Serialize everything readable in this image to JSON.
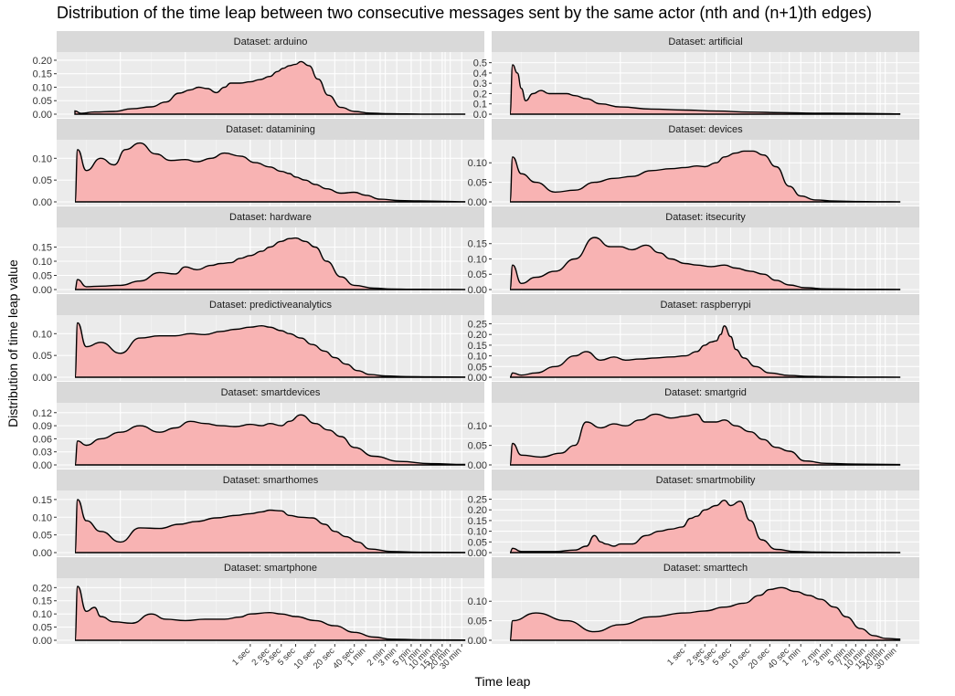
{
  "chart_data": {
    "type": "area",
    "title": "Distribution of the time leap between two consecutive messages sent by the same actor (nth and (n+1)th edges)",
    "xlabel": "Time leap",
    "ylabel": "Distribution of time leap value",
    "x_tick_labels": [
      "1 sec",
      "2 sec",
      "3 sec",
      "5 sec",
      "10 sec",
      "20 sec",
      "40 sec",
      "1 min",
      "2 min",
      "3 min",
      "5 min",
      "7 min",
      "10 min",
      "15 min",
      "20 min",
      "30 min"
    ],
    "x_ticks_sec": [
      1,
      2,
      3,
      5,
      10,
      20,
      40,
      60,
      120,
      180,
      300,
      420,
      600,
      900,
      1200,
      1800
    ],
    "x_scale": "log",
    "xlim_sec": [
      0.002,
      2100
    ],
    "fill_color": "#F8B3B3",
    "line_color": "#000000",
    "panel_background": "#EBEBEB",
    "strip_background": "#D9D9D9",
    "grid": true,
    "facets": [
      {
        "name": "Dataset: arduino",
        "ylim": [
          0,
          0.21
        ],
        "yticks": [
          "0.00",
          "0.05",
          "0.10",
          "0.15",
          "0.20"
        ],
        "x": [
          0.002,
          0.0025,
          0.004,
          0.008,
          0.015,
          0.03,
          0.05,
          0.08,
          0.12,
          0.16,
          0.22,
          0.3,
          0.4,
          0.5,
          0.7,
          1,
          1.4,
          2,
          2.6,
          3.2,
          4,
          5,
          6,
          8,
          11,
          16,
          25,
          40,
          70,
          120,
          250,
          500,
          1000,
          2000
        ],
        "y": [
          0.012,
          0.003,
          0.008,
          0.01,
          0.02,
          0.027,
          0.045,
          0.078,
          0.09,
          0.1,
          0.095,
          0.08,
          0.1,
          0.115,
          0.115,
          0.12,
          0.128,
          0.14,
          0.158,
          0.17,
          0.18,
          0.185,
          0.195,
          0.18,
          0.13,
          0.07,
          0.025,
          0.01,
          0.004,
          0.002,
          0.001,
          0.0005,
          0.0003,
          0.0002
        ]
      },
      {
        "name": "Dataset: artificial",
        "ylim": [
          0,
          0.55
        ],
        "yticks": [
          "0.0",
          "0.1",
          "0.2",
          "0.3",
          "0.4",
          "0.5"
        ],
        "x": [
          0.002,
          0.0022,
          0.0026,
          0.003,
          0.0035,
          0.0045,
          0.006,
          0.008,
          0.011,
          0.015,
          0.02,
          0.03,
          0.05,
          0.1,
          0.3,
          1,
          3,
          10,
          30,
          100,
          300,
          1000,
          2000
        ],
        "y": [
          0.0,
          0.48,
          0.4,
          0.25,
          0.13,
          0.2,
          0.23,
          0.2,
          0.2,
          0.2,
          0.18,
          0.15,
          0.1,
          0.07,
          0.05,
          0.04,
          0.03,
          0.02,
          0.015,
          0.01,
          0.008,
          0.005,
          0.003
        ]
      },
      {
        "name": "Dataset: datamining",
        "ylim": [
          0,
          0.13
        ],
        "yticks": [
          "0.00",
          "0.05",
          "0.10"
        ],
        "x": [
          0.002,
          0.0022,
          0.003,
          0.005,
          0.008,
          0.012,
          0.02,
          0.035,
          0.06,
          0.1,
          0.15,
          0.25,
          0.4,
          0.7,
          1.2,
          2,
          3,
          4,
          5,
          7,
          10,
          15,
          25,
          40,
          60,
          100,
          200,
          400,
          1000,
          2000
        ],
        "y": [
          0.0,
          0.12,
          0.072,
          0.1,
          0.085,
          0.12,
          0.135,
          0.11,
          0.095,
          0.097,
          0.092,
          0.1,
          0.112,
          0.105,
          0.09,
          0.08,
          0.07,
          0.065,
          0.057,
          0.05,
          0.04,
          0.03,
          0.02,
          0.022,
          0.015,
          0.006,
          0.003,
          0.002,
          0.001,
          0.0005
        ]
      },
      {
        "name": "Dataset: devices",
        "ylim": [
          0,
          0.145
        ],
        "yticks": [
          "0.00",
          "0.05",
          "0.10"
        ],
        "x": [
          0.002,
          0.0022,
          0.003,
          0.005,
          0.01,
          0.02,
          0.04,
          0.08,
          0.15,
          0.3,
          0.6,
          1,
          1.5,
          2,
          3,
          4,
          6,
          8,
          11,
          16,
          25,
          40,
          60,
          100,
          200,
          400,
          1000,
          2000
        ],
        "y": [
          0.0,
          0.115,
          0.072,
          0.05,
          0.025,
          0.03,
          0.05,
          0.06,
          0.065,
          0.08,
          0.085,
          0.088,
          0.092,
          0.09,
          0.1,
          0.115,
          0.125,
          0.13,
          0.13,
          0.12,
          0.09,
          0.04,
          0.015,
          0.005,
          0.002,
          0.001,
          0.0005,
          0.0003
        ]
      },
      {
        "name": "Dataset: hardware",
        "ylim": [
          0,
          0.2
        ],
        "yticks": [
          "0.00",
          "0.05",
          "0.10",
          "0.15"
        ],
        "x": [
          0.002,
          0.0022,
          0.003,
          0.005,
          0.01,
          0.02,
          0.04,
          0.07,
          0.1,
          0.15,
          0.25,
          0.35,
          0.5,
          0.7,
          1,
          1.5,
          2,
          3,
          4,
          5,
          7,
          10,
          15,
          25,
          40,
          80,
          150,
          300,
          700,
          2000
        ],
        "y": [
          0.0,
          0.035,
          0.01,
          0.012,
          0.015,
          0.03,
          0.06,
          0.055,
          0.08,
          0.07,
          0.085,
          0.092,
          0.095,
          0.11,
          0.12,
          0.135,
          0.15,
          0.17,
          0.18,
          0.182,
          0.17,
          0.15,
          0.1,
          0.045,
          0.015,
          0.005,
          0.002,
          0.001,
          0.0005,
          0.0003
        ]
      },
      {
        "name": "Dataset: itsecurity",
        "ylim": [
          0,
          0.185
        ],
        "yticks": [
          "0.00",
          "0.05",
          "0.10",
          "0.15"
        ],
        "x": [
          0.002,
          0.0022,
          0.003,
          0.005,
          0.01,
          0.02,
          0.04,
          0.07,
          0.1,
          0.15,
          0.25,
          0.4,
          0.6,
          1,
          1.5,
          2.5,
          4,
          6,
          10,
          16,
          25,
          40,
          70,
          150,
          400,
          2000
        ],
        "y": [
          0.0,
          0.08,
          0.02,
          0.04,
          0.06,
          0.1,
          0.17,
          0.14,
          0.14,
          0.13,
          0.145,
          0.12,
          0.1,
          0.085,
          0.08,
          0.075,
          0.08,
          0.07,
          0.06,
          0.05,
          0.03,
          0.015,
          0.006,
          0.002,
          0.001,
          0.0005
        ]
      },
      {
        "name": "Dataset: predictiveanalytics",
        "ylim": [
          0,
          0.13
        ],
        "yticks": [
          "0.00",
          "0.05",
          "0.10"
        ],
        "x": [
          0.002,
          0.0022,
          0.003,
          0.005,
          0.01,
          0.02,
          0.04,
          0.07,
          0.12,
          0.2,
          0.35,
          0.6,
          1,
          1.5,
          2,
          3,
          4,
          6,
          9,
          14,
          20,
          30,
          45,
          70,
          120,
          250,
          600,
          2000
        ],
        "y": [
          0.0,
          0.125,
          0.07,
          0.08,
          0.055,
          0.09,
          0.095,
          0.095,
          0.1,
          0.098,
          0.105,
          0.11,
          0.115,
          0.118,
          0.115,
          0.107,
          0.1,
          0.09,
          0.075,
          0.06,
          0.045,
          0.03,
          0.015,
          0.006,
          0.003,
          0.0015,
          0.0008,
          0.0005
        ]
      },
      {
        "name": "Dataset: raspberrypi",
        "ylim": [
          0,
          0.265
        ],
        "yticks": [
          "0.00",
          "0.05",
          "0.10",
          "0.15",
          "0.20",
          "0.25"
        ],
        "x": [
          0.002,
          0.0022,
          0.003,
          0.005,
          0.01,
          0.02,
          0.03,
          0.05,
          0.08,
          0.12,
          0.2,
          0.35,
          0.6,
          1,
          1.5,
          2,
          2.5,
          3,
          3.5,
          4,
          5,
          6,
          8,
          12,
          20,
          40,
          80,
          200,
          600,
          2000
        ],
        "y": [
          0.0,
          0.02,
          0.01,
          0.02,
          0.05,
          0.1,
          0.12,
          0.08,
          0.095,
          0.08,
          0.085,
          0.09,
          0.095,
          0.1,
          0.12,
          0.15,
          0.165,
          0.17,
          0.2,
          0.24,
          0.19,
          0.13,
          0.09,
          0.05,
          0.02,
          0.008,
          0.004,
          0.002,
          0.001,
          0.0005
        ]
      },
      {
        "name": "Dataset: smartdevices",
        "ylim": [
          0,
          0.13
        ],
        "yticks": [
          "0.00",
          "0.03",
          "0.06",
          "0.09",
          "0.12"
        ],
        "x": [
          0.002,
          0.0022,
          0.003,
          0.005,
          0.01,
          0.02,
          0.04,
          0.07,
          0.12,
          0.2,
          0.35,
          0.6,
          1,
          1.5,
          2,
          3,
          4,
          6,
          10,
          16,
          25,
          40,
          80,
          200,
          600,
          2000
        ],
        "y": [
          0.0,
          0.055,
          0.045,
          0.06,
          0.075,
          0.09,
          0.075,
          0.085,
          0.1,
          0.095,
          0.09,
          0.088,
          0.093,
          0.09,
          0.095,
          0.09,
          0.1,
          0.115,
          0.095,
          0.08,
          0.065,
          0.04,
          0.02,
          0.008,
          0.003,
          0.001
        ]
      },
      {
        "name": "Dataset: smartgrid",
        "ylim": [
          0,
          0.145
        ],
        "yticks": [
          "0.00",
          "0.05",
          "0.10"
        ],
        "x": [
          0.002,
          0.0022,
          0.003,
          0.006,
          0.012,
          0.02,
          0.03,
          0.05,
          0.08,
          0.12,
          0.2,
          0.35,
          0.6,
          1,
          1.5,
          2,
          3,
          4,
          6,
          10,
          16,
          25,
          40,
          70,
          150,
          400,
          2000
        ],
        "y": [
          0.0,
          0.055,
          0.025,
          0.02,
          0.03,
          0.05,
          0.11,
          0.095,
          0.105,
          0.1,
          0.115,
          0.13,
          0.12,
          0.125,
          0.13,
          0.11,
          0.11,
          0.115,
          0.1,
          0.085,
          0.065,
          0.045,
          0.035,
          0.01,
          0.004,
          0.002,
          0.001
        ]
      },
      {
        "name": "Dataset: smarthomes",
        "ylim": [
          0,
          0.16
        ],
        "yticks": [
          "0.00",
          "0.05",
          "0.10",
          "0.15"
        ],
        "x": [
          0.002,
          0.0022,
          0.003,
          0.005,
          0.01,
          0.02,
          0.04,
          0.08,
          0.15,
          0.3,
          0.6,
          1,
          1.5,
          2,
          3,
          4,
          6,
          9,
          14,
          20,
          30,
          45,
          70,
          150,
          400,
          2000
        ],
        "y": [
          0.0,
          0.15,
          0.09,
          0.06,
          0.03,
          0.07,
          0.068,
          0.08,
          0.088,
          0.098,
          0.105,
          0.11,
          0.115,
          0.12,
          0.118,
          0.105,
          0.1,
          0.098,
          0.08,
          0.06,
          0.045,
          0.03,
          0.01,
          0.003,
          0.001,
          0.0005
        ]
      },
      {
        "name": "Dataset: smartmobility",
        "ylim": [
          0,
          0.265
        ],
        "yticks": [
          "0.00",
          "0.05",
          "0.10",
          "0.15",
          "0.20",
          "0.25"
        ],
        "x": [
          0.002,
          0.0022,
          0.003,
          0.01,
          0.02,
          0.03,
          0.04,
          0.05,
          0.06,
          0.08,
          0.1,
          0.15,
          0.25,
          0.4,
          0.6,
          0.9,
          1.2,
          1.5,
          2,
          3,
          4,
          5,
          7,
          10,
          15,
          25,
          50,
          120,
          400,
          2000
        ],
        "y": [
          0.0,
          0.02,
          0.005,
          0.005,
          0.012,
          0.03,
          0.08,
          0.05,
          0.04,
          0.03,
          0.04,
          0.04,
          0.08,
          0.1,
          0.11,
          0.12,
          0.16,
          0.17,
          0.2,
          0.22,
          0.245,
          0.22,
          0.24,
          0.15,
          0.06,
          0.015,
          0.005,
          0.002,
          0.001,
          0.0005
        ]
      },
      {
        "name": "Dataset: smartphone",
        "ylim": [
          0,
          0.215
        ],
        "yticks": [
          "0.00",
          "0.05",
          "0.10",
          "0.15",
          "0.20"
        ],
        "x": [
          0.002,
          0.0022,
          0.003,
          0.004,
          0.005,
          0.008,
          0.015,
          0.03,
          0.05,
          0.1,
          0.2,
          0.4,
          0.7,
          1,
          2,
          3,
          5,
          10,
          20,
          40,
          80,
          150,
          400,
          2000
        ],
        "y": [
          0.0,
          0.205,
          0.11,
          0.125,
          0.09,
          0.07,
          0.065,
          0.1,
          0.08,
          0.075,
          0.08,
          0.08,
          0.088,
          0.1,
          0.105,
          0.1,
          0.09,
          0.075,
          0.055,
          0.03,
          0.012,
          0.004,
          0.002,
          0.001
        ]
      },
      {
        "name": "Dataset: smarttech",
        "ylim": [
          0,
          0.145
        ],
        "yticks": [
          "0.00",
          "0.05",
          "0.10"
        ],
        "x": [
          0.002,
          0.0022,
          0.005,
          0.015,
          0.04,
          0.1,
          0.3,
          1,
          2,
          4,
          8,
          14,
          20,
          30,
          50,
          80,
          120,
          200,
          300,
          500,
          800,
          1200,
          2000
        ],
        "y": [
          0.0,
          0.05,
          0.07,
          0.05,
          0.022,
          0.04,
          0.06,
          0.07,
          0.075,
          0.085,
          0.095,
          0.115,
          0.13,
          0.135,
          0.125,
          0.115,
          0.105,
          0.085,
          0.06,
          0.03,
          0.012,
          0.005,
          0.003
        ]
      }
    ]
  }
}
